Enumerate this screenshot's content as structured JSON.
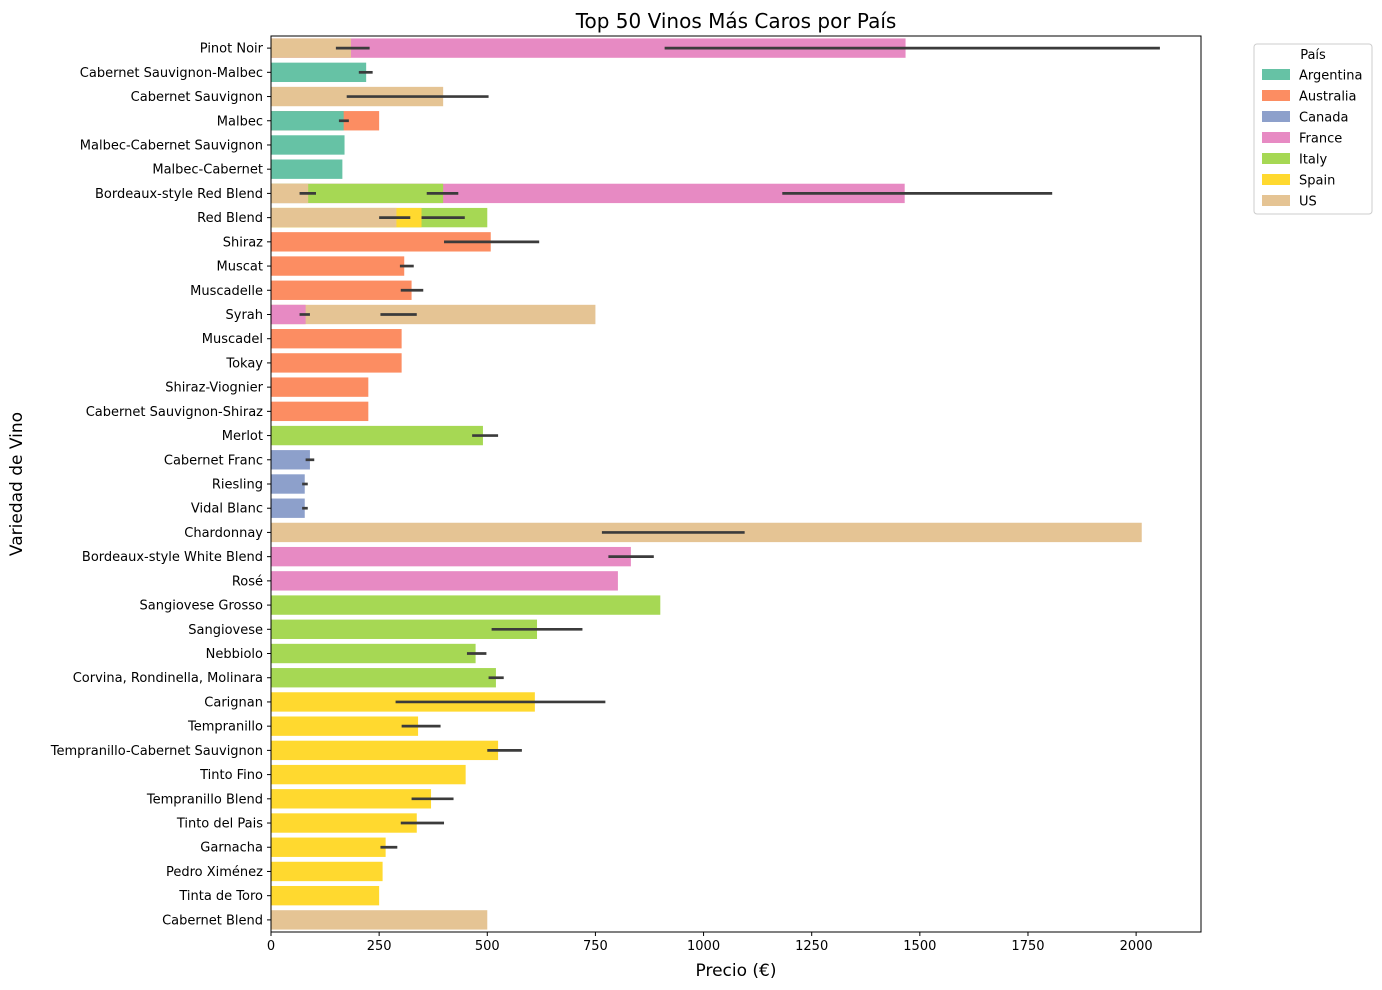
{
  "chart_data": {
    "type": "bar",
    "orientation": "horizontal",
    "title": "Top 50 Vinos Más Caros por País",
    "xlabel": "Precio (€)",
    "ylabel": "Variedad de Vino",
    "xlim": [
      0,
      2150
    ],
    "xticks": [
      0,
      250,
      500,
      750,
      1000,
      1250,
      1500,
      1750,
      2000
    ],
    "grid": false,
    "legend": {
      "title": "País",
      "placement": "outside-top-right",
      "entries": [
        {
          "name": "Argentina",
          "color": "#66c2a5"
        },
        {
          "name": "Australia",
          "color": "#fc8d62"
        },
        {
          "name": "Canada",
          "color": "#8da0cb"
        },
        {
          "name": "France",
          "color": "#e78ac3"
        },
        {
          "name": "Italy",
          "color": "#a6d854"
        },
        {
          "name": "Spain",
          "color": "#ffd92f"
        },
        {
          "name": "US",
          "color": "#e5c494"
        }
      ]
    },
    "error_bar_color": "#3b3b3b",
    "categories": [
      "Pinot Noir",
      "Cabernet Sauvignon-Malbec",
      "Cabernet Sauvignon",
      "Malbec",
      "Malbec-Cabernet Sauvignon",
      "Malbec-Cabernet",
      "Bordeaux-style Red Blend",
      "Red Blend",
      "Shiraz",
      "Muscat",
      "Muscadelle",
      "Syrah",
      "Muscadel",
      "Tokay",
      "Shiraz-Viognier",
      "Cabernet Sauvignon-Shiraz",
      "Merlot",
      "Cabernet Franc",
      "Riesling",
      "Vidal Blanc",
      "Chardonnay",
      "Bordeaux-style White Blend",
      "Rosé",
      "Sangiovese Grosso",
      "Sangiovese",
      "Nebbiolo",
      "Corvina, Rondinella, Molinara",
      "Carignan",
      "Tempranillo",
      "Tempranillo-Cabernet Sauvignon",
      "Tinto Fino",
      "Tempranillo Blend",
      "Tinto del Pais",
      "Garnacha",
      "Pedro Ximénez",
      "Tinta de Toro",
      "Cabernet Blend"
    ],
    "bars": [
      {
        "category": "Pinot Noir",
        "country": "France",
        "value": 1467,
        "err": [
          910,
          2055
        ]
      },
      {
        "category": "Pinot Noir",
        "country": "US",
        "value": 185,
        "err": [
          150,
          228
        ]
      },
      {
        "category": "Cabernet Sauvignon-Malbec",
        "country": "Argentina",
        "value": 220,
        "err": [
          203,
          235
        ]
      },
      {
        "category": "Cabernet Sauvignon",
        "country": "US",
        "value": 398,
        "err": [
          175,
          503
        ]
      },
      {
        "category": "Malbec",
        "country": "Australia",
        "value": 250,
        "err": null
      },
      {
        "category": "Malbec",
        "country": "Argentina",
        "value": 168,
        "err": [
          157,
          180
        ]
      },
      {
        "category": "Malbec-Cabernet Sauvignon",
        "country": "Argentina",
        "value": 170,
        "err": null
      },
      {
        "category": "Malbec-Cabernet",
        "country": "Argentina",
        "value": 165,
        "err": null
      },
      {
        "category": "Bordeaux-style Red Blend",
        "country": "France",
        "value": 1465,
        "err": [
          1182,
          1806
        ]
      },
      {
        "category": "Bordeaux-style Red Blend",
        "country": "Italy",
        "value": 398,
        "err": [
          360,
          433
        ]
      },
      {
        "category": "Bordeaux-style Red Blend",
        "country": "US",
        "value": 86,
        "err": [
          66,
          104
        ]
      },
      {
        "category": "Red Blend",
        "country": "Italy",
        "value": 500,
        "err": [
          348,
          448
        ]
      },
      {
        "category": "Red Blend",
        "country": "Spain",
        "value": 348,
        "err": null
      },
      {
        "category": "Red Blend",
        "country": "US",
        "value": 290,
        "err": [
          250,
          322
        ]
      },
      {
        "category": "Shiraz",
        "country": "Australia",
        "value": 508,
        "err": [
          400,
          620
        ]
      },
      {
        "category": "Muscat",
        "country": "Australia",
        "value": 308,
        "err": [
          298,
          330
        ]
      },
      {
        "category": "Muscadelle",
        "country": "Australia",
        "value": 325,
        "err": [
          300,
          352
        ]
      },
      {
        "category": "Syrah",
        "country": "US",
        "value": 750,
        "err": [
          253,
          337
        ]
      },
      {
        "category": "Syrah",
        "country": "France",
        "value": 80,
        "err": [
          66,
          90
        ]
      },
      {
        "category": "Muscadel",
        "country": "Australia",
        "value": 302,
        "err": null
      },
      {
        "category": "Tokay",
        "country": "Australia",
        "value": 302,
        "err": null
      },
      {
        "category": "Shiraz-Viognier",
        "country": "Australia",
        "value": 225,
        "err": null
      },
      {
        "category": "Cabernet Sauvignon-Shiraz",
        "country": "Australia",
        "value": 225,
        "err": null
      },
      {
        "category": "Merlot",
        "country": "Italy",
        "value": 490,
        "err": [
          465,
          525
        ]
      },
      {
        "category": "Cabernet Franc",
        "country": "Canada",
        "value": 90,
        "err": [
          80,
          100
        ]
      },
      {
        "category": "Riesling",
        "country": "Canada",
        "value": 78,
        "err": [
          72,
          85
        ]
      },
      {
        "category": "Vidal Blanc",
        "country": "Canada",
        "value": 78,
        "err": [
          72,
          85
        ]
      },
      {
        "category": "Chardonnay",
        "country": "US",
        "value": 2013,
        "err": [
          765,
          1095
        ]
      },
      {
        "category": "Bordeaux-style White Blend",
        "country": "France",
        "value": 832,
        "err": [
          780,
          885
        ]
      },
      {
        "category": "Rosé",
        "country": "France",
        "value": 802,
        "err": null
      },
      {
        "category": "Sangiovese Grosso",
        "country": "Italy",
        "value": 900,
        "err": null
      },
      {
        "category": "Sangiovese",
        "country": "Italy",
        "value": 615,
        "err": [
          510,
          720
        ]
      },
      {
        "category": "Nebbiolo",
        "country": "Italy",
        "value": 473,
        "err": [
          453,
          498
        ]
      },
      {
        "category": "Corvina, Rondinella, Molinara",
        "country": "Italy",
        "value": 520,
        "err": [
          503,
          538
        ]
      },
      {
        "category": "Carignan",
        "country": "Spain",
        "value": 610,
        "err": [
          288,
          773
        ]
      },
      {
        "category": "Tempranillo",
        "country": "Spain",
        "value": 340,
        "err": [
          302,
          392
        ]
      },
      {
        "category": "Tempranillo-Cabernet Sauvignon",
        "country": "Spain",
        "value": 525,
        "err": [
          500,
          580
        ]
      },
      {
        "category": "Tinto Fino",
        "country": "Spain",
        "value": 450,
        "err": null
      },
      {
        "category": "Tempranillo Blend",
        "country": "Spain",
        "value": 370,
        "err": [
          325,
          422
        ]
      },
      {
        "category": "Tinto del Pais",
        "country": "Spain",
        "value": 337,
        "err": [
          300,
          400
        ]
      },
      {
        "category": "Garnacha",
        "country": "Spain",
        "value": 265,
        "err": [
          253,
          292
        ]
      },
      {
        "category": "Pedro Ximénez",
        "country": "Spain",
        "value": 258,
        "err": null
      },
      {
        "category": "Tinta de Toro",
        "country": "Spain",
        "value": 250,
        "err": null
      },
      {
        "category": "Cabernet Blend",
        "country": "US",
        "value": 500,
        "err": null
      }
    ]
  }
}
